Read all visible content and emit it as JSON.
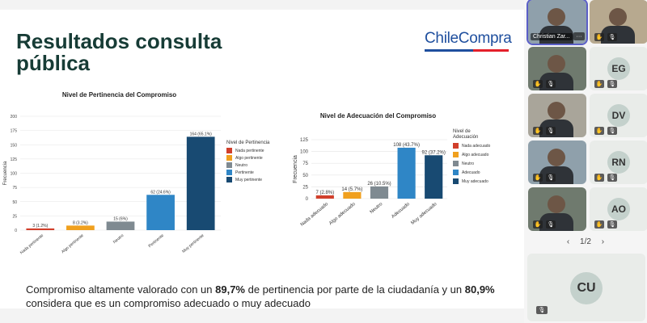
{
  "slide": {
    "title": "Resultados consulta pública",
    "logo": "ChileCompra",
    "summary": {
      "p1": "Compromiso altamente valorado con un ",
      "b1": "89,7%",
      "p2": " de pertinencia por parte de la ciudadanía y un ",
      "b2": "80,9%",
      "p3": " considera que es un compromiso adecuado o muy adecuado"
    }
  },
  "colors": {
    "title": "#173c36",
    "logo_blue": "#1f4f9e",
    "logo_red": "#e4202b",
    "accent": "#5b5fc7"
  },
  "chart_data": [
    {
      "type": "bar",
      "title": "Nivel de Pertinencia del Compromiso",
      "ylabel": "Frecuencia",
      "xlabel": "",
      "ylim": [
        0,
        200
      ],
      "yticks": [
        0,
        25,
        50,
        75,
        100,
        125,
        150,
        175,
        200
      ],
      "categories": [
        "Nada pertinente",
        "Algo pertinente",
        "Neutro",
        "Pertinente",
        "Muy pertinente"
      ],
      "values": [
        3,
        8,
        15,
        62,
        164
      ],
      "labels": [
        "3 (1.2%)",
        "8 (3.2%)",
        "15 (6%)",
        "62 (24.6%)",
        "164 (65.1%)"
      ],
      "colors": [
        "#d13f2b",
        "#f0a01e",
        "#7f8a91",
        "#2f86c6",
        "#184a72"
      ],
      "legend_title": "Nivel de Pertinencia",
      "legend": [
        "Nada pertinente",
        "Algo pertinente",
        "Neutro",
        "Pertinente",
        "Muy pertinente"
      ]
    },
    {
      "type": "bar",
      "title": "Nivel de Adecuación del Compromiso",
      "ylabel": "Frecuencia",
      "xlabel": "",
      "ylim": [
        0,
        125
      ],
      "yticks": [
        0,
        25,
        50,
        75,
        100,
        125
      ],
      "categories": [
        "Nada adecuado",
        "Algo adecuado",
        "Neutro",
        "Adecuado",
        "Muy adecuado"
      ],
      "values": [
        7,
        14,
        26,
        108,
        92
      ],
      "labels": [
        "7 (2.8%)",
        "14 (5.7%)",
        "26 (10.5%)",
        "108 (43.7%)",
        "92 (37.2%)"
      ],
      "colors": [
        "#d13f2b",
        "#f0a01e",
        "#7f8a91",
        "#2f86c6",
        "#184a72"
      ],
      "legend_title": "Nivel de Adecuación",
      "legend": [
        "Nada adecuado",
        "Algo adecuado",
        "Neutro",
        "Adecuado",
        "Muy adecuado"
      ]
    }
  ],
  "participants": [
    {
      "name": "Christian Zar...",
      "more": "···",
      "initials": "",
      "photo": true
    },
    {
      "name": "",
      "initials": "",
      "photo": true
    },
    {
      "name": "",
      "initials": "",
      "photo": true
    },
    {
      "name": "",
      "initials": "EG",
      "photo": false
    },
    {
      "name": "",
      "initials": "",
      "photo": true
    },
    {
      "name": "",
      "initials": "DV",
      "photo": false
    },
    {
      "name": "",
      "initials": "",
      "photo": true
    },
    {
      "name": "",
      "initials": "RN",
      "photo": false
    },
    {
      "name": "",
      "initials": "",
      "photo": true
    },
    {
      "name": "",
      "initials": "AO",
      "photo": false
    }
  ],
  "pager": {
    "prev": "‹",
    "label": "1/2",
    "next": "›"
  },
  "speaker": {
    "initials": "CU"
  }
}
